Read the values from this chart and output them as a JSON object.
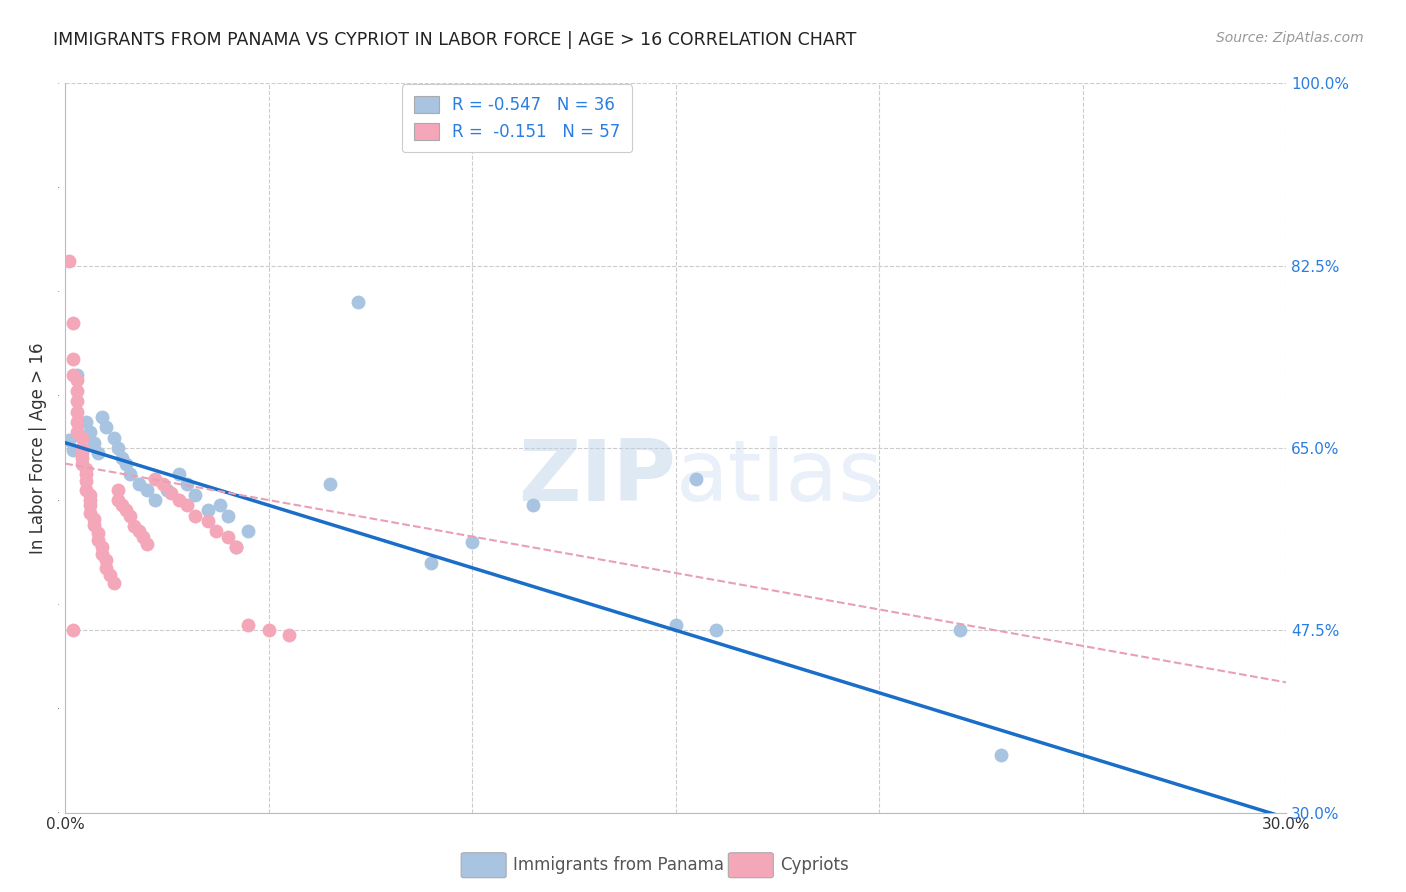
{
  "title": "IMMIGRANTS FROM PANAMA VS CYPRIOT IN LABOR FORCE | AGE > 16 CORRELATION CHART",
  "source": "Source: ZipAtlas.com",
  "ylabel": "In Labor Force | Age > 16",
  "xlim": [
    0.0,
    0.3
  ],
  "ylim": [
    0.3,
    1.0
  ],
  "yticks": [
    0.3,
    0.475,
    0.65,
    0.825,
    1.0
  ],
  "ytick_labels": [
    "30.0%",
    "47.5%",
    "65.0%",
    "82.5%",
    "100.0%"
  ],
  "xtick_positions": [
    0.0,
    0.05,
    0.1,
    0.15,
    0.2,
    0.25,
    0.3
  ],
  "xtick_labels": [
    "0.0%",
    "",
    "",
    "",
    "",
    "",
    "30.0%"
  ],
  "panama_R": -0.547,
  "panama_N": 36,
  "cypriot_R": -0.151,
  "cypriot_N": 57,
  "panama_color": "#a8c4e0",
  "cypriot_color": "#f4a7b9",
  "panama_line_color": "#1a6ec7",
  "cypriot_line_color": "#e8a0b4",
  "grid_color": "#cccccc",
  "background_color": "#ffffff",
  "panama_scatter": [
    [
      0.001,
      0.658
    ],
    [
      0.002,
      0.648
    ],
    [
      0.003,
      0.72
    ],
    [
      0.005,
      0.675
    ],
    [
      0.006,
      0.665
    ],
    [
      0.007,
      0.655
    ],
    [
      0.008,
      0.645
    ],
    [
      0.009,
      0.68
    ],
    [
      0.01,
      0.67
    ],
    [
      0.012,
      0.66
    ],
    [
      0.013,
      0.65
    ],
    [
      0.014,
      0.64
    ],
    [
      0.015,
      0.635
    ],
    [
      0.016,
      0.625
    ],
    [
      0.018,
      0.615
    ],
    [
      0.02,
      0.61
    ],
    [
      0.022,
      0.6
    ],
    [
      0.025,
      0.61
    ],
    [
      0.028,
      0.625
    ],
    [
      0.03,
      0.615
    ],
    [
      0.032,
      0.605
    ],
    [
      0.035,
      0.59
    ],
    [
      0.038,
      0.595
    ],
    [
      0.04,
      0.585
    ],
    [
      0.042,
      0.555
    ],
    [
      0.045,
      0.57
    ],
    [
      0.065,
      0.615
    ],
    [
      0.072,
      0.79
    ],
    [
      0.09,
      0.54
    ],
    [
      0.1,
      0.56
    ],
    [
      0.115,
      0.595
    ],
    [
      0.15,
      0.48
    ],
    [
      0.16,
      0.475
    ],
    [
      0.22,
      0.475
    ],
    [
      0.23,
      0.355
    ],
    [
      0.155,
      0.62
    ]
  ],
  "cypriot_scatter": [
    [
      0.001,
      0.83
    ],
    [
      0.002,
      0.77
    ],
    [
      0.002,
      0.735
    ],
    [
      0.002,
      0.72
    ],
    [
      0.003,
      0.715
    ],
    [
      0.003,
      0.705
    ],
    [
      0.003,
      0.695
    ],
    [
      0.003,
      0.685
    ],
    [
      0.003,
      0.675
    ],
    [
      0.003,
      0.665
    ],
    [
      0.004,
      0.66
    ],
    [
      0.004,
      0.65
    ],
    [
      0.004,
      0.645
    ],
    [
      0.004,
      0.64
    ],
    [
      0.004,
      0.635
    ],
    [
      0.005,
      0.63
    ],
    [
      0.005,
      0.625
    ],
    [
      0.005,
      0.618
    ],
    [
      0.005,
      0.61
    ],
    [
      0.006,
      0.605
    ],
    [
      0.006,
      0.6
    ],
    [
      0.006,
      0.595
    ],
    [
      0.006,
      0.588
    ],
    [
      0.007,
      0.582
    ],
    [
      0.007,
      0.576
    ],
    [
      0.008,
      0.568
    ],
    [
      0.008,
      0.562
    ],
    [
      0.009,
      0.555
    ],
    [
      0.009,
      0.548
    ],
    [
      0.01,
      0.542
    ],
    [
      0.01,
      0.535
    ],
    [
      0.011,
      0.528
    ],
    [
      0.012,
      0.52
    ],
    [
      0.013,
      0.61
    ],
    [
      0.013,
      0.6
    ],
    [
      0.014,
      0.595
    ],
    [
      0.015,
      0.59
    ],
    [
      0.016,
      0.585
    ],
    [
      0.017,
      0.575
    ],
    [
      0.018,
      0.57
    ],
    [
      0.019,
      0.565
    ],
    [
      0.02,
      0.558
    ],
    [
      0.022,
      0.62
    ],
    [
      0.024,
      0.615
    ],
    [
      0.026,
      0.607
    ],
    [
      0.028,
      0.6
    ],
    [
      0.03,
      0.595
    ],
    [
      0.032,
      0.585
    ],
    [
      0.035,
      0.58
    ],
    [
      0.037,
      0.57
    ],
    [
      0.04,
      0.565
    ],
    [
      0.042,
      0.555
    ],
    [
      0.045,
      0.48
    ],
    [
      0.05,
      0.475
    ],
    [
      0.055,
      0.47
    ],
    [
      0.002,
      0.475
    ]
  ]
}
